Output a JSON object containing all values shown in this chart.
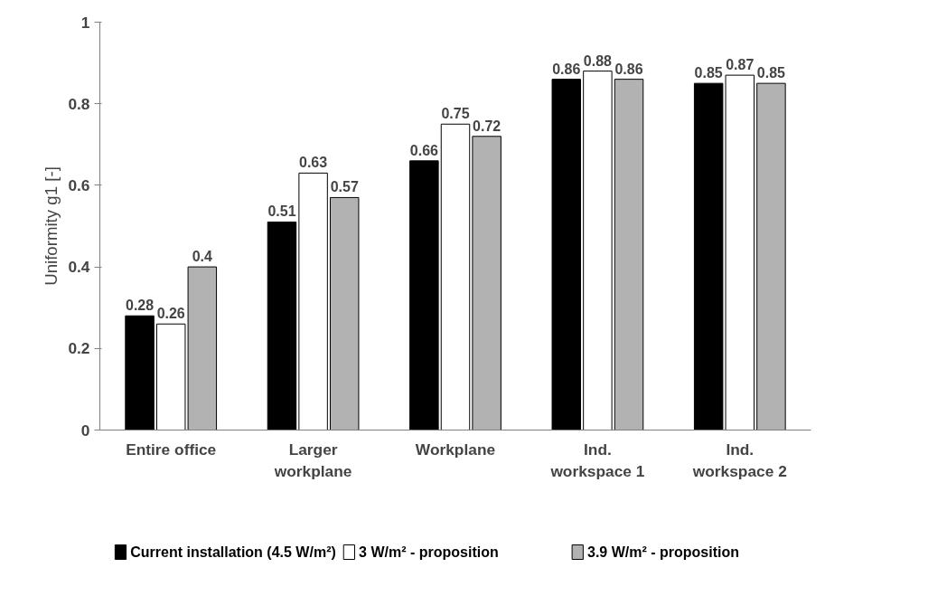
{
  "chart_data": {
    "type": "bar",
    "ylabel": "Uniformity g1 [-]",
    "categories": [
      "Entire office",
      "Larger\nworkplane",
      "Workplane",
      "Ind.\nworkspace 1",
      "Ind.\nworkspace 2"
    ],
    "series": [
      {
        "name": "Current installation (4.5 W/m²)",
        "color": "#000000",
        "values": [
          0.28,
          0.51,
          0.66,
          0.86,
          0.85
        ]
      },
      {
        "name": "3 W/m² - proposition",
        "color": "#ffffff",
        "values": [
          0.26,
          0.63,
          0.75,
          0.88,
          0.87
        ]
      },
      {
        "name": "3.9 W/m² - proposition",
        "color": "#b2b2b2",
        "values": [
          0.4,
          0.57,
          0.72,
          0.86,
          0.85
        ]
      }
    ],
    "ylim": [
      0,
      1
    ],
    "yticks": [
      0,
      0.2,
      0.4,
      0.6,
      0.8,
      1
    ],
    "data_labels": true,
    "legend": "bottom",
    "grid": false
  }
}
